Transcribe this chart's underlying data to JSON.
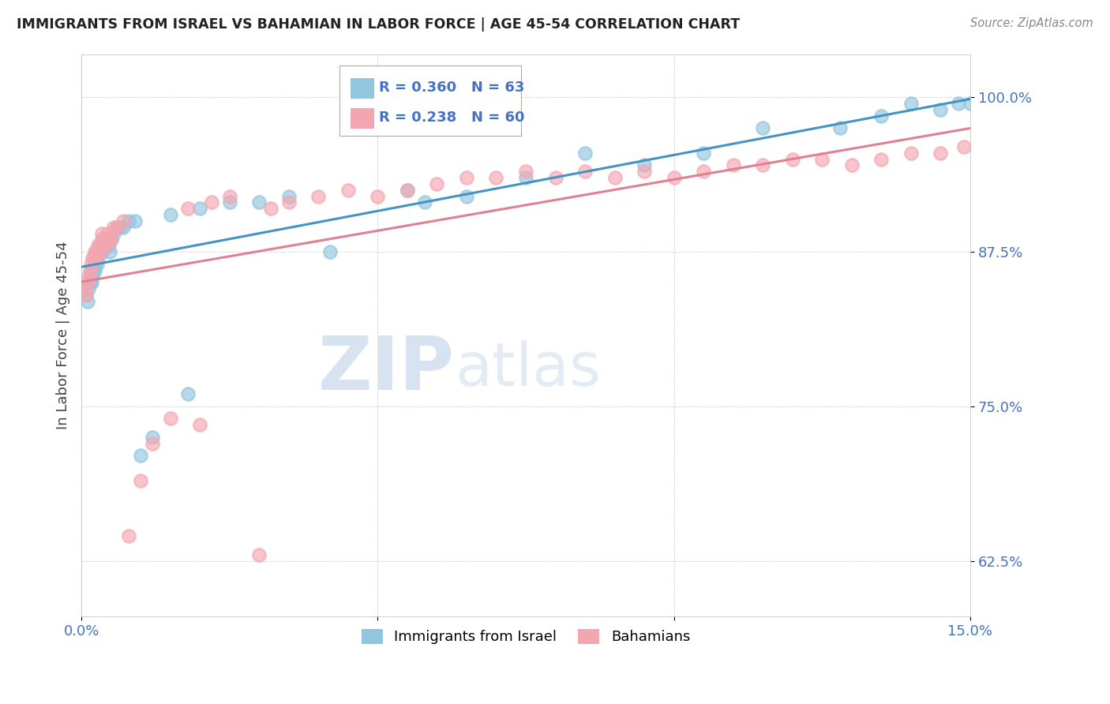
{
  "title": "IMMIGRANTS FROM ISRAEL VS BAHAMIAN IN LABOR FORCE | AGE 45-54 CORRELATION CHART",
  "source": "Source: ZipAtlas.com",
  "ylabel": "In Labor Force | Age 45-54",
  "xlim": [
    0.0,
    15.0
  ],
  "ylim": [
    58.0,
    103.5
  ],
  "ytick_min": 62.5,
  "ytick_max": 100.0,
  "xticks": [
    0.0,
    5.0,
    10.0,
    15.0
  ],
  "xticklabels": [
    "0.0%",
    "",
    "",
    "15.0%"
  ],
  "yticks": [
    62.5,
    75.0,
    87.5,
    100.0
  ],
  "yticklabels": [
    "62.5%",
    "75.0%",
    "87.5%",
    "100.0%"
  ],
  "legend_R1": "0.360",
  "legend_N1": "63",
  "legend_R2": "0.238",
  "legend_N2": "60",
  "legend_label1": "Immigrants from Israel",
  "legend_label2": "Bahamians",
  "color_israel": "#92c5de",
  "color_bahamian": "#f4a6b0",
  "trendline_color_israel": "#4393c3",
  "trendline_color_bahamian": "#e08090",
  "watermark_zip": "ZIP",
  "watermark_atlas": "atlas",
  "blue_x": [
    0.08,
    0.1,
    0.12,
    0.14,
    0.16,
    0.17,
    0.18,
    0.19,
    0.2,
    0.21,
    0.22,
    0.23,
    0.24,
    0.25,
    0.26,
    0.27,
    0.28,
    0.29,
    0.3,
    0.31,
    0.32,
    0.33,
    0.34,
    0.35,
    0.36,
    0.37,
    0.38,
    0.39,
    0.4,
    0.42,
    0.44,
    0.46,
    0.48,
    0.5,
    0.55,
    0.6,
    0.65,
    0.7,
    0.8,
    0.9,
    1.0,
    1.2,
    1.5,
    1.8,
    2.0,
    2.5,
    3.0,
    3.5,
    4.2,
    5.5,
    5.8,
    6.5,
    7.5,
    8.5,
    9.5,
    10.5,
    11.5,
    12.8,
    13.5,
    14.0,
    14.5,
    14.8,
    15.0
  ],
  "blue_y": [
    84.0,
    83.5,
    84.5,
    85.0,
    85.5,
    85.0,
    85.5,
    86.0,
    86.0,
    86.5,
    86.5,
    86.0,
    87.0,
    87.0,
    86.5,
    87.5,
    87.0,
    87.5,
    87.5,
    88.0,
    87.5,
    88.0,
    87.5,
    88.0,
    88.5,
    88.0,
    88.5,
    88.5,
    88.0,
    88.5,
    88.5,
    88.0,
    87.5,
    88.5,
    89.0,
    89.5,
    89.5,
    89.5,
    90.0,
    90.0,
    71.0,
    72.5,
    90.5,
    76.0,
    91.0,
    91.5,
    91.5,
    92.0,
    87.5,
    92.5,
    91.5,
    92.0,
    93.5,
    95.5,
    94.5,
    95.5,
    97.5,
    97.5,
    98.5,
    99.5,
    99.0,
    99.5,
    99.5
  ],
  "pink_x": [
    0.05,
    0.08,
    0.1,
    0.12,
    0.14,
    0.16,
    0.18,
    0.2,
    0.22,
    0.24,
    0.26,
    0.28,
    0.3,
    0.32,
    0.34,
    0.35,
    0.36,
    0.38,
    0.4,
    0.42,
    0.44,
    0.46,
    0.5,
    0.55,
    0.6,
    0.7,
    0.8,
    1.0,
    1.2,
    1.5,
    1.8,
    2.0,
    2.2,
    2.5,
    3.0,
    3.2,
    3.5,
    4.0,
    4.5,
    5.0,
    5.5,
    6.0,
    6.5,
    7.0,
    7.5,
    8.0,
    8.5,
    9.0,
    9.5,
    10.0,
    10.5,
    11.0,
    11.5,
    12.0,
    12.5,
    13.0,
    13.5,
    14.0,
    14.5,
    14.9
  ],
  "pink_y": [
    84.5,
    84.0,
    85.0,
    85.5,
    86.0,
    86.5,
    87.0,
    87.0,
    87.5,
    87.5,
    87.0,
    88.0,
    87.5,
    88.0,
    88.5,
    89.0,
    88.0,
    88.5,
    88.5,
    88.0,
    89.0,
    88.5,
    88.5,
    89.5,
    89.5,
    90.0,
    64.5,
    69.0,
    72.0,
    74.0,
    91.0,
    73.5,
    91.5,
    92.0,
    63.0,
    91.0,
    91.5,
    92.0,
    92.5,
    92.0,
    92.5,
    93.0,
    93.5,
    93.5,
    94.0,
    93.5,
    94.0,
    93.5,
    94.0,
    93.5,
    94.0,
    94.5,
    94.5,
    95.0,
    95.0,
    94.5,
    95.0,
    95.5,
    95.5,
    96.0
  ]
}
